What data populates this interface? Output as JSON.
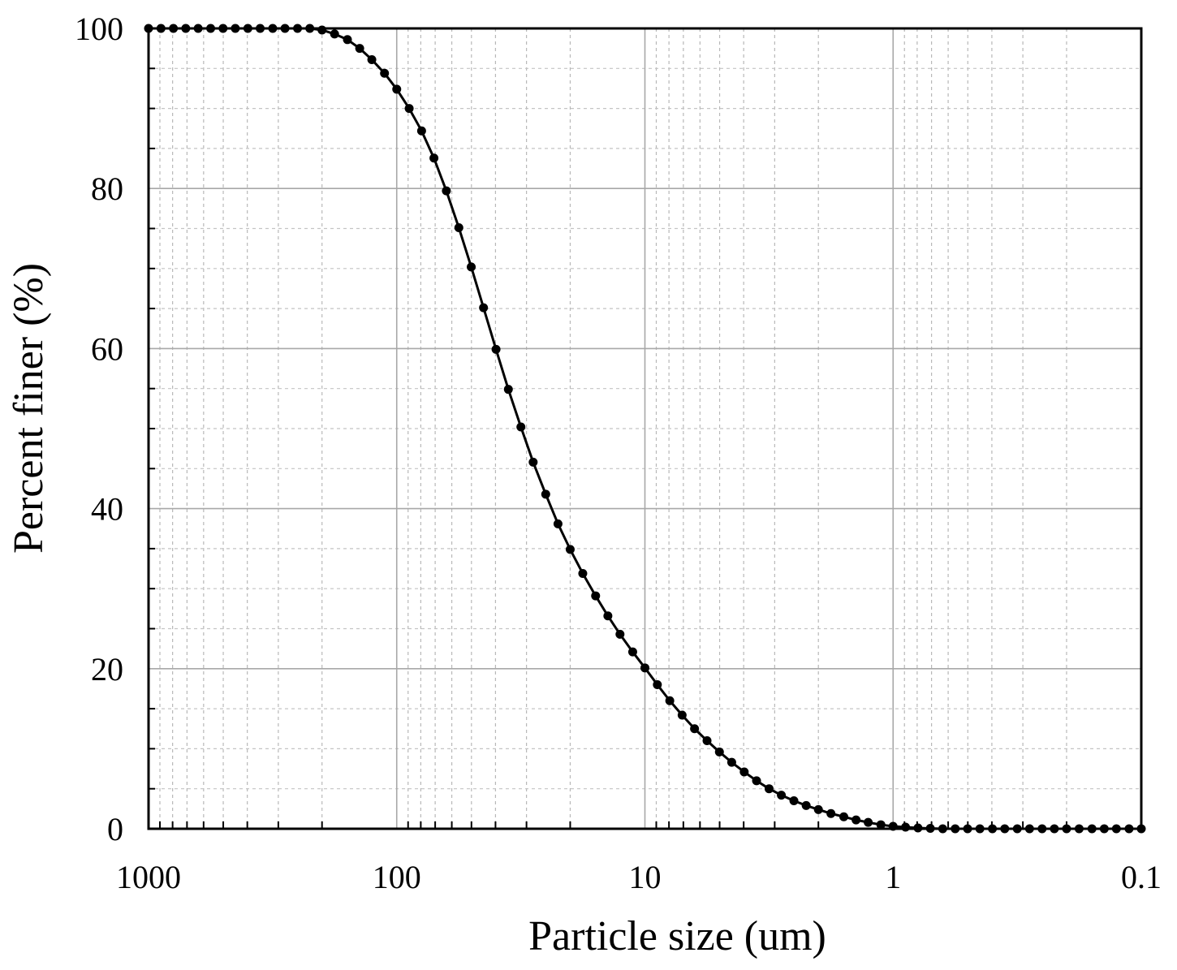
{
  "chart_data": {
    "type": "scatter",
    "xlabel": "Particle size (um)",
    "ylabel": "Percent finer (%)",
    "x_scale": "log",
    "x_reversed": true,
    "xlim": [
      1000,
      0.1
    ],
    "ylim": [
      0,
      100
    ],
    "x_ticks": [
      {
        "value": 1000,
        "label": "1000"
      },
      {
        "value": 100,
        "label": "100"
      },
      {
        "value": 10,
        "label": "10"
      },
      {
        "value": 1,
        "label": "1"
      },
      {
        "value": 0.1,
        "label": "0.1"
      }
    ],
    "y_ticks": [
      {
        "value": 0,
        "label": "0"
      },
      {
        "value": 20,
        "label": "20"
      },
      {
        "value": 40,
        "label": "40"
      },
      {
        "value": 60,
        "label": "60"
      },
      {
        "value": 80,
        "label": "80"
      },
      {
        "value": 100,
        "label": "100"
      }
    ],
    "grid": true,
    "series": [
      {
        "color": "#000000",
        "marker": "circle",
        "line": true,
        "points": [
          [
            1000,
            100
          ],
          [
            891,
            100
          ],
          [
            794,
            100
          ],
          [
            708,
            100
          ],
          [
            631,
            100
          ],
          [
            562,
            100
          ],
          [
            501,
            100
          ],
          [
            447,
            100
          ],
          [
            398,
            100
          ],
          [
            355,
            100
          ],
          [
            316,
            100
          ],
          [
            282,
            100
          ],
          [
            251,
            100
          ],
          [
            224,
            100
          ],
          [
            200,
            99.8
          ],
          [
            178,
            99.3
          ],
          [
            158,
            98.6
          ],
          [
            141,
            97.5
          ],
          [
            126,
            96.1
          ],
          [
            112,
            94.4
          ],
          [
            100,
            92.4
          ],
          [
            89.1,
            90.0
          ],
          [
            79.4,
            87.2
          ],
          [
            70.8,
            83.8
          ],
          [
            63.1,
            79.7
          ],
          [
            56.2,
            75.1
          ],
          [
            50.1,
            70.2
          ],
          [
            44.7,
            65.1
          ],
          [
            39.8,
            59.9
          ],
          [
            35.5,
            54.9
          ],
          [
            31.6,
            50.2
          ],
          [
            28.2,
            45.8
          ],
          [
            25.1,
            41.8
          ],
          [
            22.4,
            38.1
          ],
          [
            20.0,
            34.9
          ],
          [
            17.8,
            31.9
          ],
          [
            15.8,
            29.1
          ],
          [
            14.1,
            26.6
          ],
          [
            12.6,
            24.3
          ],
          [
            11.2,
            22.1
          ],
          [
            10.0,
            20.1
          ],
          [
            8.91,
            18.0
          ],
          [
            7.94,
            16.0
          ],
          [
            7.08,
            14.2
          ],
          [
            6.31,
            12.5
          ],
          [
            5.62,
            11.0
          ],
          [
            5.01,
            9.6
          ],
          [
            4.47,
            8.3
          ],
          [
            3.98,
            7.1
          ],
          [
            3.55,
            6.0
          ],
          [
            3.16,
            5.0
          ],
          [
            2.82,
            4.2
          ],
          [
            2.51,
            3.5
          ],
          [
            2.24,
            2.9
          ],
          [
            2.0,
            2.4
          ],
          [
            1.78,
            1.9
          ],
          [
            1.58,
            1.5
          ],
          [
            1.41,
            1.1
          ],
          [
            1.26,
            0.8
          ],
          [
            1.12,
            0.5
          ],
          [
            1.0,
            0.3
          ],
          [
            0.891,
            0.2
          ],
          [
            0.794,
            0.1
          ],
          [
            0.708,
            0.05
          ],
          [
            0.631,
            0
          ],
          [
            0.562,
            0
          ],
          [
            0.501,
            0
          ],
          [
            0.447,
            0
          ],
          [
            0.398,
            0
          ],
          [
            0.355,
            0
          ],
          [
            0.316,
            0
          ],
          [
            0.282,
            0
          ],
          [
            0.251,
            0
          ],
          [
            0.224,
            0
          ],
          [
            0.2,
            0
          ],
          [
            0.178,
            0
          ],
          [
            0.158,
            0
          ],
          [
            0.141,
            0
          ],
          [
            0.126,
            0
          ],
          [
            0.112,
            0
          ],
          [
            0.1,
            0
          ]
        ]
      }
    ]
  }
}
